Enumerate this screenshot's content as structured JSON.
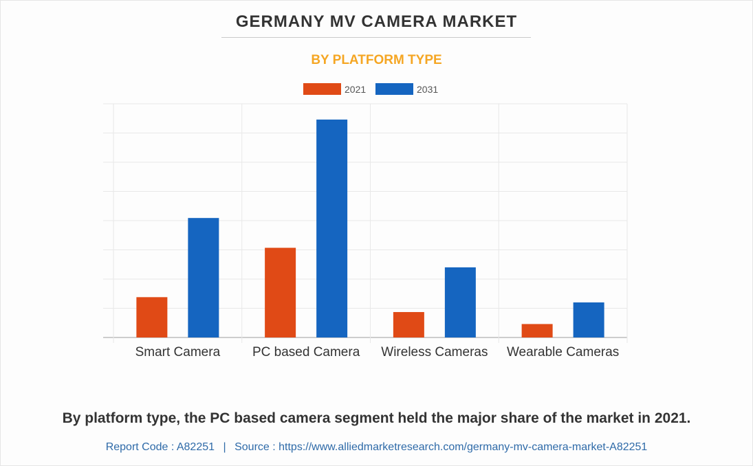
{
  "header": {
    "title": "GERMANY MV CAMERA MARKET",
    "subtitle": "BY PLATFORM TYPE"
  },
  "chart_data": {
    "type": "bar",
    "categories": [
      "Smart Camera",
      "PC based Camera",
      "Wireless Cameras",
      "Wearable Cameras"
    ],
    "series": [
      {
        "name": "2021",
        "color": "#e04a16",
        "values": [
          13.8,
          30.7,
          8.7,
          4.6
        ]
      },
      {
        "name": "2031",
        "color": "#1565c0",
        "values": [
          40.9,
          74.6,
          24.0,
          12.0
        ]
      }
    ],
    "ylim": [
      0,
      80
    ],
    "grid": true,
    "legend": "top-center"
  },
  "caption": "By platform type, the PC based camera segment held the major share of the market in 2021.",
  "footer": {
    "report_code": "Report Code : A82251",
    "separator": "|",
    "source": "Source : https://www.alliedmarketresearch.com/germany-mv-camera-market-A82251"
  }
}
